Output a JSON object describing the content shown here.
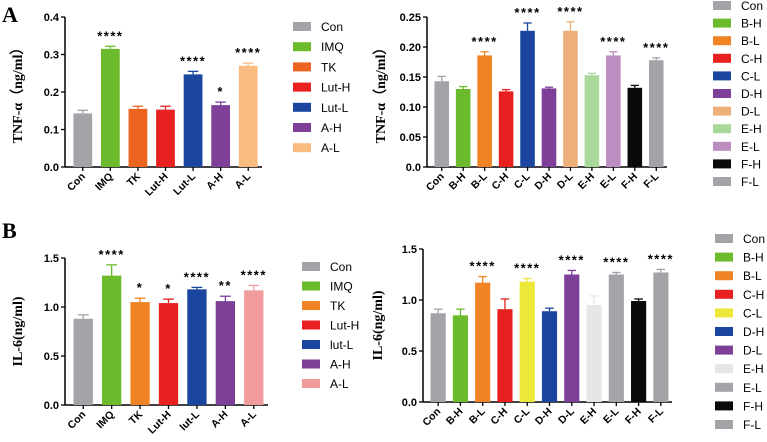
{
  "panel_labels": [
    "A",
    "B"
  ],
  "chart_data": [
    {
      "type": "bar",
      "panel": "A",
      "ylabel": "TNF-α（ng/ml）",
      "ylim": [
        0,
        0.4
      ],
      "yticks": [
        "0.0",
        "0.1",
        "0.2",
        "0.3",
        "0.4"
      ],
      "ytick_values": [
        0,
        0.1,
        0.2,
        0.3,
        0.4
      ],
      "categories": [
        "Con",
        "IMQ",
        "TK",
        "Lut-H",
        "Lut-L",
        "A-H",
        "A-L"
      ],
      "values": [
        0.143,
        0.315,
        0.155,
        0.153,
        0.247,
        0.165,
        0.27
      ],
      "errors": [
        0.008,
        0.007,
        0.007,
        0.009,
        0.008,
        0.008,
        0.007
      ],
      "significance": [
        "",
        "****",
        "",
        "",
        "****",
        "*",
        "****"
      ],
      "colors": [
        "#a3a3a8",
        "#6cbb2d",
        "#ec6420",
        "#e8201f",
        "#1a46a0",
        "#7d3f98",
        "#f8bb80"
      ],
      "legend": [
        "Con",
        "IMQ",
        "TK",
        "Lut-H",
        "Lut-L",
        "A-H",
        "A-L"
      ],
      "legend_position": "right"
    },
    {
      "type": "bar",
      "panel": "A",
      "ylabel": "TNF-α（ng/ml）",
      "ylim": [
        0,
        0.25
      ],
      "yticks": [
        "0.0",
        "0.05",
        "0.10",
        "0.15",
        "0.20",
        "0.25"
      ],
      "ytick_values": [
        0,
        0.05,
        0.1,
        0.15,
        0.2,
        0.25
      ],
      "categories": [
        "Con",
        "B-H",
        "B-L",
        "C-H",
        "C-L",
        "D-H",
        "D-L",
        "E-H",
        "E-L",
        "F-H",
        "F-L"
      ],
      "values": [
        0.143,
        0.13,
        0.186,
        0.126,
        0.227,
        0.131,
        0.227,
        0.153,
        0.186,
        0.132,
        0.178
      ],
      "errors": [
        0.008,
        0.004,
        0.006,
        0.003,
        0.013,
        0.002,
        0.015,
        0.003,
        0.006,
        0.004,
        0.004
      ],
      "significance": [
        "",
        "",
        "****",
        "",
        "****",
        "",
        "****",
        "",
        "****",
        "",
        "****"
      ],
      "colors": [
        "#a3a3a8",
        "#6cbb2d",
        "#f08424",
        "#e8201f",
        "#1a46a0",
        "#7d3f98",
        "#edb07a",
        "#a8d89a",
        "#bd8cc0",
        "#0a0a0a",
        "#a3a3a8"
      ],
      "legend": [
        "Con",
        "B-H",
        "B-L",
        "C-H",
        "C-L",
        "D-H",
        "D-L",
        "E-H",
        "E-L",
        "F-H",
        "F-L"
      ],
      "legend_position": "right"
    },
    {
      "type": "bar",
      "panel": "B",
      "ylabel": "IL-6(ng/ml)",
      "ylim": [
        0,
        1.5
      ],
      "yticks": [
        "0.0",
        "0.5",
        "1.0",
        "1.5"
      ],
      "ytick_values": [
        0,
        0.5,
        1.0,
        1.5
      ],
      "categories": [
        "Con",
        "IMQ",
        "TK",
        "Lut-H",
        "lut-L",
        "A-H",
        "A-L"
      ],
      "values": [
        0.88,
        1.32,
        1.05,
        1.04,
        1.18,
        1.06,
        1.17
      ],
      "errors": [
        0.04,
        0.11,
        0.04,
        0.04,
        0.02,
        0.05,
        0.05
      ],
      "significance": [
        "",
        "****",
        "*",
        "*",
        "****",
        "**",
        "****"
      ],
      "colors": [
        "#a3a3a8",
        "#6cbb2d",
        "#f08424",
        "#e8201f",
        "#1a46a0",
        "#7d3f98",
        "#f09c9c"
      ],
      "legend": [
        "Con",
        "IMQ",
        "TK",
        "Lut-H",
        "lut-L",
        "A-H",
        "A-L"
      ],
      "legend_position": "right"
    },
    {
      "type": "bar",
      "panel": "B",
      "ylabel": "IL-6(ng/ml)",
      "ylim": [
        0,
        1.5
      ],
      "yticks": [
        "0.0",
        "0.5",
        "1.0",
        "1.5"
      ],
      "ytick_values": [
        0,
        0.5,
        1.0,
        1.5
      ],
      "categories": [
        "Con",
        "B-H",
        "B-L",
        "C-H",
        "C-L",
        "D-H",
        "D-L",
        "E-H",
        "E-L",
        "F-H",
        "F-L"
      ],
      "values": [
        0.87,
        0.85,
        1.17,
        0.91,
        1.18,
        0.89,
        1.25,
        0.95,
        1.25,
        0.99,
        1.27
      ],
      "errors": [
        0.04,
        0.06,
        0.06,
        0.1,
        0.03,
        0.03,
        0.04,
        0.09,
        0.02,
        0.02,
        0.03
      ],
      "significance": [
        "",
        "",
        "****",
        "",
        "****",
        "",
        "****",
        "",
        "****",
        "",
        "****"
      ],
      "colors": [
        "#a3a3a8",
        "#6cbb2d",
        "#f08424",
        "#e8201f",
        "#ece83a",
        "#1a46a0",
        "#7d3f98",
        "#e6e6e6",
        "#a3a3a8",
        "#0a0a0a",
        "#a3a3a8"
      ],
      "legend": [
        "Con",
        "B-H",
        "B-L",
        "C-H",
        "C-L",
        "D-H",
        "D-L",
        "E-H",
        "E-L",
        "F-H",
        "F-L"
      ],
      "legend_position": "right"
    }
  ]
}
